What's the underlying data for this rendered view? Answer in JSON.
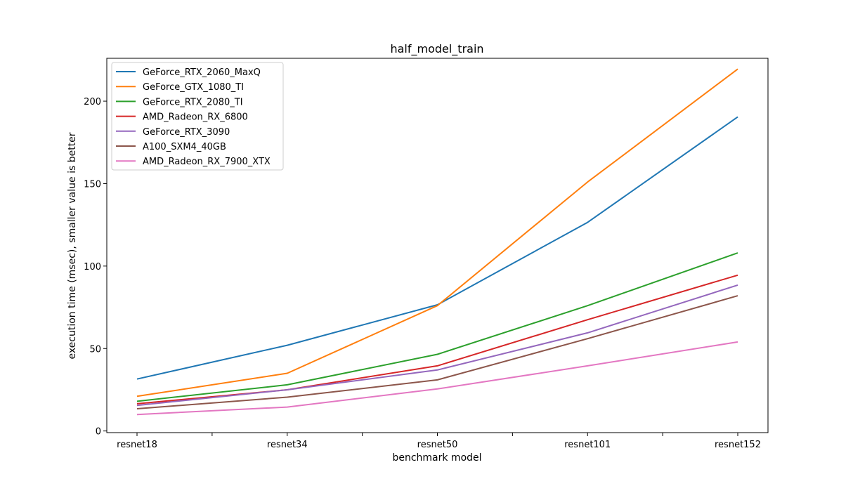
{
  "chart_data": {
    "type": "line",
    "title": "half_model_train",
    "xlabel": "benchmark model",
    "ylabel": "execution time (msec), smaller value is better",
    "categories": [
      "resnet18",
      "resnet34",
      "resnet50",
      "resnet101",
      "resnet152"
    ],
    "yticks": [
      0,
      50,
      100,
      150,
      200
    ],
    "ylim": [
      -1,
      226
    ],
    "grid": false,
    "legend_position": "upper-left",
    "series": [
      {
        "name": "GeForce_RTX_2060_MaxQ",
        "color": "#1f77b4",
        "values": [
          31.5,
          52.0,
          76.5,
          126.5,
          190.5
        ]
      },
      {
        "name": "GeForce_GTX_1080_TI",
        "color": "#ff7f0e",
        "values": [
          21.0,
          35.0,
          76.0,
          151.0,
          219.5
        ]
      },
      {
        "name": "GeForce_RTX_2080_TI",
        "color": "#2ca02c",
        "values": [
          18.0,
          28.0,
          46.5,
          76.0,
          108.0
        ]
      },
      {
        "name": "AMD_Radeon_RX_6800",
        "color": "#d62728",
        "values": [
          16.5,
          25.0,
          39.5,
          67.5,
          94.5
        ]
      },
      {
        "name": "GeForce_RTX_3090",
        "color": "#9467bd",
        "values": [
          15.5,
          25.0,
          37.0,
          59.5,
          88.5
        ]
      },
      {
        "name": "A100_SXM4_40GB",
        "color": "#8c564b",
        "values": [
          13.5,
          20.5,
          31.0,
          56.0,
          82.0
        ]
      },
      {
        "name": "AMD_Radeon_RX_7900_XTX",
        "color": "#e377c2",
        "values": [
          10.0,
          14.5,
          25.5,
          39.5,
          54.0
        ]
      }
    ]
  }
}
